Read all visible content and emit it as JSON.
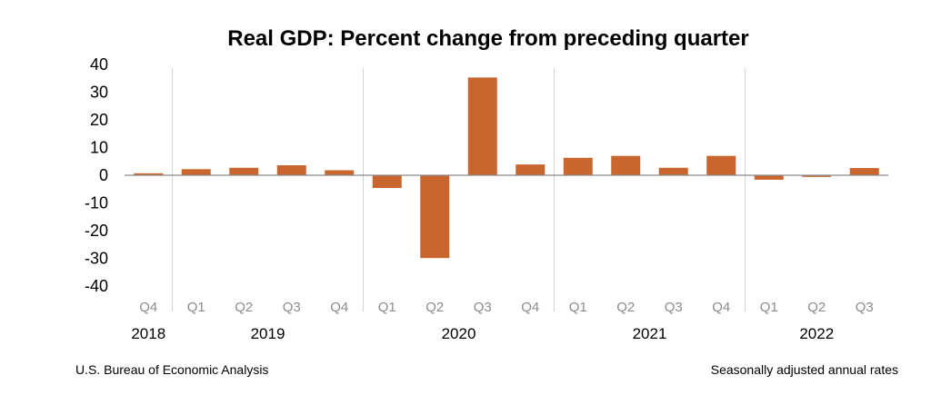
{
  "footer": {
    "source": "U.S. Bureau of Economic Analysis",
    "note": "Seasonally adjusted annual rates"
  },
  "colors": {
    "bar": "#C8662E",
    "zero_line": "#8a8a8a",
    "separator": "#d4d4d4"
  },
  "chart_data": {
    "type": "bar",
    "title": "Real GDP:  Percent change from preceding quarter",
    "xlabel": "",
    "ylabel": "",
    "ylim": [
      -40,
      40
    ],
    "yticks": [
      40,
      30,
      20,
      10,
      0,
      -10,
      -20,
      -30,
      -40
    ],
    "categories": [
      "Q4",
      "Q1",
      "Q2",
      "Q3",
      "Q4",
      "Q1",
      "Q2",
      "Q3",
      "Q4",
      "Q1",
      "Q2",
      "Q3",
      "Q4",
      "Q1",
      "Q2",
      "Q3"
    ],
    "years": [
      {
        "label": "2018",
        "start": 0,
        "end": 0
      },
      {
        "label": "2019",
        "start": 1,
        "end": 4
      },
      {
        "label": "2020",
        "start": 5,
        "end": 8
      },
      {
        "label": "2021",
        "start": 9,
        "end": 12
      },
      {
        "label": "2022",
        "start": 13,
        "end": 15
      }
    ],
    "values": [
      0.7,
      2.2,
      2.7,
      3.6,
      1.8,
      -4.6,
      -29.9,
      35.3,
      3.9,
      6.3,
      7.0,
      2.7,
      7.0,
      -1.6,
      -0.6,
      2.6
    ],
    "grid": false,
    "legend": "none"
  }
}
